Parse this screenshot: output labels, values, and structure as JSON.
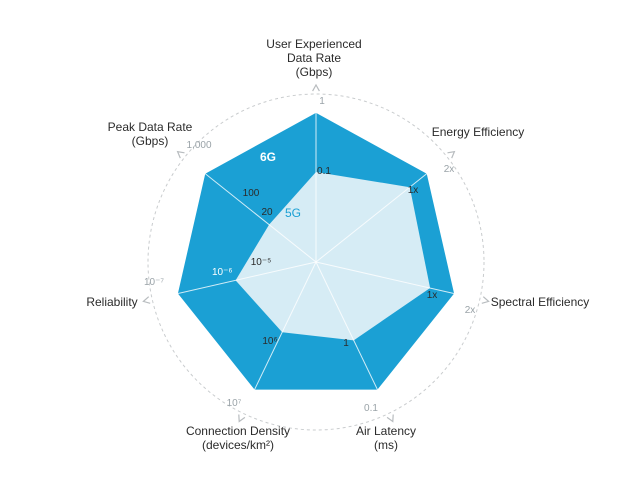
{
  "colors": {
    "series_6g": "#1ba0d4",
    "series_5g": "#d6ecf5",
    "grid": "#c9ccce",
    "axis_arrow": "#b8bcbf"
  },
  "chart_data": {
    "type": "radar",
    "grid": true,
    "axes": [
      {
        "id": "user-data-rate",
        "title": [
          "User Experienced",
          "Data Rate",
          "(Gbps)"
        ],
        "outer_tick": "1",
        "sixg_tick": "",
        "fiveg_tick": "0.1"
      },
      {
        "id": "energy-efficiency",
        "title": [
          "Energy Efficiency"
        ],
        "outer_tick": "2x",
        "sixg_tick": "",
        "fiveg_tick": "1x"
      },
      {
        "id": "spectral-efficiency",
        "title": [
          "Spectral Efficiency"
        ],
        "outer_tick": "2x",
        "sixg_tick": "",
        "fiveg_tick": "1x"
      },
      {
        "id": "air-latency",
        "title": [
          "Air Latency",
          "(ms)"
        ],
        "outer_tick": "0.1",
        "sixg_tick": "",
        "fiveg_tick": "1"
      },
      {
        "id": "connection-density",
        "title": [
          "Connection Density",
          "(devices/km²)"
        ],
        "outer_tick": "10⁷",
        "sixg_tick": "",
        "fiveg_tick": "10⁶"
      },
      {
        "id": "reliability",
        "title": [
          "Reliability"
        ],
        "outer_tick": "10⁻⁷",
        "sixg_tick": "",
        "fiveg_tick": "10⁻⁵"
      },
      {
        "id": "peak-data-rate",
        "title": [
          "Peak Data Rate",
          "(Gbps)"
        ],
        "outer_tick": "1,000",
        "sixg_tick": "100",
        "fiveg_tick": "20"
      }
    ],
    "series": [
      {
        "name": "6G",
        "values": [
          1.0,
          0.95,
          0.95,
          0.95,
          0.95,
          0.95,
          0.95
        ]
      },
      {
        "name": "5G",
        "values": [
          0.6,
          0.8,
          0.78,
          0.58,
          0.52,
          0.55,
          0.4
        ]
      }
    ],
    "mid_tick_reliability": "10⁻⁶"
  }
}
